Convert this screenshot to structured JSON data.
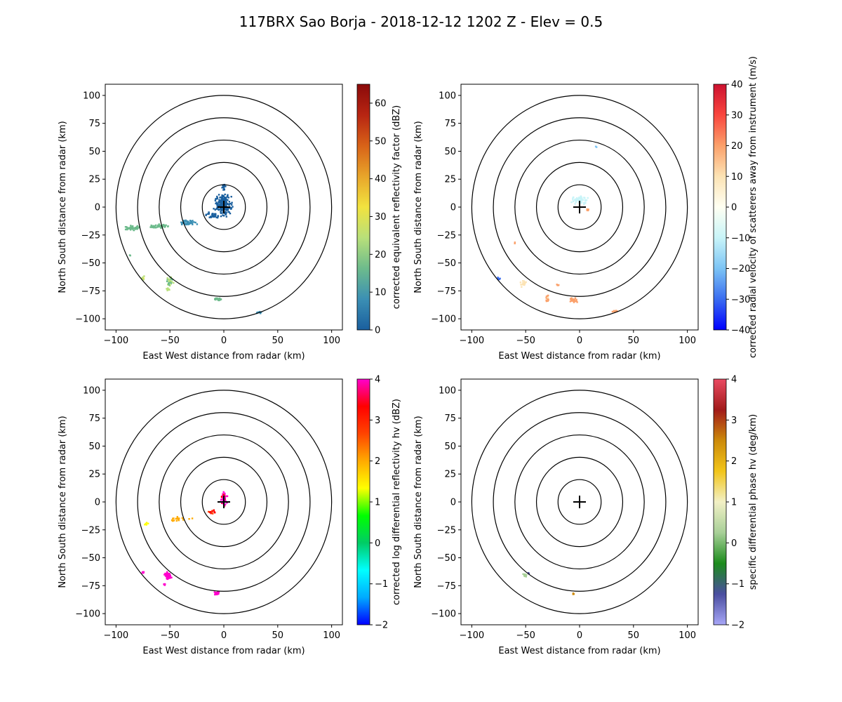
{
  "title": "117BRX Sao Borja - 2018-12-12 1202 Z -  Elev = 0.5",
  "chart_data": [
    {
      "type": "scatter",
      "subtype": "radar-ppi",
      "xlabel": "East West distance from radar (km)",
      "ylabel": "North South distance from radar (km)",
      "xlim": [
        -110,
        110
      ],
      "ylim": [
        -110,
        110
      ],
      "xticks": [
        -100,
        -50,
        0,
        50,
        100
      ],
      "yticks": [
        -100,
        -75,
        -50,
        -25,
        0,
        25,
        50,
        75,
        100
      ],
      "range_rings_km": [
        20,
        40,
        60,
        80,
        100
      ],
      "colorbar": {
        "label": "corrected equivalent reflectivity factor (dBZ)",
        "range": [
          0,
          65
        ],
        "ticks": [
          0,
          10,
          20,
          30,
          40,
          50,
          60
        ],
        "colors": [
          "#1a5f9e",
          "#3b8fb4",
          "#6dbb8c",
          "#b8e07a",
          "#f2e33f",
          "#e8a52a",
          "#d86218",
          "#b72512",
          "#8a0a0a"
        ]
      },
      "echoes": [
        {
          "x": 0,
          "y": 2,
          "rx": 10,
          "ry": 12,
          "count": 220,
          "value": 3
        },
        {
          "x": 0,
          "y": 18,
          "rx": 3,
          "ry": 4,
          "count": 15,
          "value": 3
        },
        {
          "x": -10,
          "y": -8,
          "rx": 8,
          "ry": 4,
          "count": 30,
          "value": 5
        },
        {
          "x": -35,
          "y": -14,
          "rx": 12,
          "ry": 3,
          "count": 50,
          "value": 12
        },
        {
          "x": -60,
          "y": -17,
          "rx": 13,
          "ry": 2.5,
          "count": 50,
          "value": 17
        },
        {
          "x": -85,
          "y": -19,
          "rx": 10,
          "ry": 3,
          "count": 45,
          "value": 20
        },
        {
          "x": -50,
          "y": -66,
          "rx": 4,
          "ry": 5,
          "count": 35,
          "value": 22
        },
        {
          "x": -52,
          "y": -73,
          "rx": 2,
          "ry": 2,
          "count": 6,
          "value": 25
        },
        {
          "x": -75,
          "y": -63,
          "rx": 2,
          "ry": 3,
          "count": 6,
          "value": 28
        },
        {
          "x": -6,
          "y": -82,
          "rx": 4,
          "ry": 2,
          "count": 20,
          "value": 18
        },
        {
          "x": 32,
          "y": -94,
          "rx": 5,
          "ry": 1.5,
          "count": 12,
          "value": 13
        },
        {
          "x": -87,
          "y": -43,
          "rx": 1,
          "ry": 1,
          "count": 2,
          "value": 15
        }
      ]
    },
    {
      "type": "scatter",
      "subtype": "radar-ppi",
      "xlabel": "East West distance from radar (km)",
      "ylabel": "North South distance from radar (km)",
      "xlim": [
        -110,
        110
      ],
      "ylim": [
        -110,
        110
      ],
      "xticks": [
        -100,
        -50,
        0,
        50,
        100
      ],
      "yticks": [
        -100,
        -75,
        -50,
        -25,
        0,
        25,
        50,
        75,
        100
      ],
      "range_rings_km": [
        20,
        40,
        60,
        80,
        100
      ],
      "colorbar": {
        "label": "corrected radial velocity of scatterers away from instrument (m/s)",
        "range": [
          -40,
          40
        ],
        "ticks": [
          -40,
          -30,
          -20,
          -10,
          0,
          10,
          20,
          30,
          40
        ],
        "colors": [
          "#0000ff",
          "#3a6cf0",
          "#7cc4f5",
          "#c8f4f8",
          "#fffff2",
          "#fce3b4",
          "#fba06a",
          "#f9463e",
          "#cc1130"
        ]
      },
      "echoes": [
        {
          "x": 0,
          "y": 6,
          "rx": 9,
          "ry": 6,
          "count": 60,
          "value": -6
        },
        {
          "x": 7,
          "y": -2,
          "rx": 2,
          "ry": 2,
          "count": 6,
          "value": 18
        },
        {
          "x": -75,
          "y": -64,
          "rx": 2,
          "ry": 1.5,
          "count": 8,
          "value": -25
        },
        {
          "x": -52,
          "y": -68,
          "rx": 4,
          "ry": 4,
          "count": 15,
          "value": 10
        },
        {
          "x": -30,
          "y": -82,
          "rx": 2,
          "ry": 4,
          "count": 15,
          "value": 15
        },
        {
          "x": -6,
          "y": -83,
          "rx": 5,
          "ry": 3,
          "count": 30,
          "value": 18
        },
        {
          "x": 33,
          "y": -93,
          "rx": 4,
          "ry": 1.5,
          "count": 10,
          "value": 16
        },
        {
          "x": -20,
          "y": -70,
          "rx": 2,
          "ry": 1,
          "count": 4,
          "value": 16
        },
        {
          "x": 15,
          "y": 54,
          "rx": 1,
          "ry": 0.5,
          "count": 2,
          "value": -15
        },
        {
          "x": -60,
          "y": -32,
          "rx": 1,
          "ry": 1,
          "count": 2,
          "value": 14
        }
      ]
    },
    {
      "type": "scatter",
      "subtype": "radar-ppi",
      "xlabel": "East West distance from radar (km)",
      "ylabel": "North South distance from radar (km)",
      "xlim": [
        -110,
        110
      ],
      "ylim": [
        -110,
        110
      ],
      "xticks": [
        -100,
        -50,
        0,
        50,
        100
      ],
      "yticks": [
        -100,
        -75,
        -50,
        -25,
        0,
        25,
        50,
        75,
        100
      ],
      "range_rings_km": [
        20,
        40,
        60,
        80,
        100
      ],
      "colorbar": {
        "label": "corrected log differential reflectivity hv (dBZ)",
        "range": [
          -2,
          4
        ],
        "ticks": [
          -2,
          -1,
          0,
          1,
          2,
          3,
          4
        ],
        "colors": [
          "#0000ff",
          "#00aaff",
          "#00ffff",
          "#00cc66",
          "#00ff00",
          "#ffff00",
          "#ffaa00",
          "#ff4400",
          "#ff0000",
          "#ff00cc"
        ]
      },
      "echoes": [
        {
          "x": 0,
          "y": 3,
          "rx": 4,
          "ry": 8,
          "count": 60,
          "value": 3.5
        },
        {
          "x": -12,
          "y": -9,
          "rx": 5,
          "ry": 3,
          "count": 15,
          "value": 2.8
        },
        {
          "x": -40,
          "y": -15,
          "rx": 14,
          "ry": 3,
          "count": 18,
          "value": 1.8
        },
        {
          "x": -72,
          "y": -19,
          "rx": 3,
          "ry": 2,
          "count": 5,
          "value": 1.2
        },
        {
          "x": -52,
          "y": -66,
          "rx": 4,
          "ry": 4,
          "count": 70,
          "value": 3.95
        },
        {
          "x": -55,
          "y": -74,
          "rx": 1.5,
          "ry": 1.5,
          "count": 6,
          "value": 3.9
        },
        {
          "x": -75,
          "y": -63,
          "rx": 1.5,
          "ry": 2,
          "count": 8,
          "value": 3.9
        },
        {
          "x": -7,
          "y": -82,
          "rx": 3,
          "ry": 2,
          "count": 30,
          "value": 3.95
        }
      ]
    },
    {
      "type": "scatter",
      "subtype": "radar-ppi",
      "xlabel": "East West distance from radar (km)",
      "ylabel": "North South distance from radar (km)",
      "xlim": [
        -110,
        110
      ],
      "ylim": [
        -110,
        110
      ],
      "xticks": [
        -100,
        -50,
        0,
        50,
        100
      ],
      "yticks": [
        -100,
        -75,
        -50,
        -25,
        0,
        25,
        50,
        75,
        100
      ],
      "range_rings_km": [
        20,
        40,
        60,
        80,
        100
      ],
      "colorbar": {
        "label": "specific differential phase hv (deg/km)",
        "range": [
          -2,
          4
        ],
        "ticks": [
          -2,
          -1,
          0,
          1,
          2,
          3,
          4
        ],
        "colors": [
          "#a7a6f7",
          "#4a4ea0",
          "#1c8c1c",
          "#a8d098",
          "#f2f0c6",
          "#f2c519",
          "#cc8a0a",
          "#a11a1a",
          "#ea4a62"
        ]
      },
      "echoes": [
        {
          "x": -51,
          "y": -66,
          "rx": 2,
          "ry": 2,
          "count": 12,
          "value": 0.3
        },
        {
          "x": -47,
          "y": -64,
          "rx": 1,
          "ry": 1,
          "count": 3,
          "value": -0.8
        },
        {
          "x": -6,
          "y": -82,
          "rx": 1,
          "ry": 1,
          "count": 5,
          "value": 2.2
        }
      ]
    }
  ]
}
